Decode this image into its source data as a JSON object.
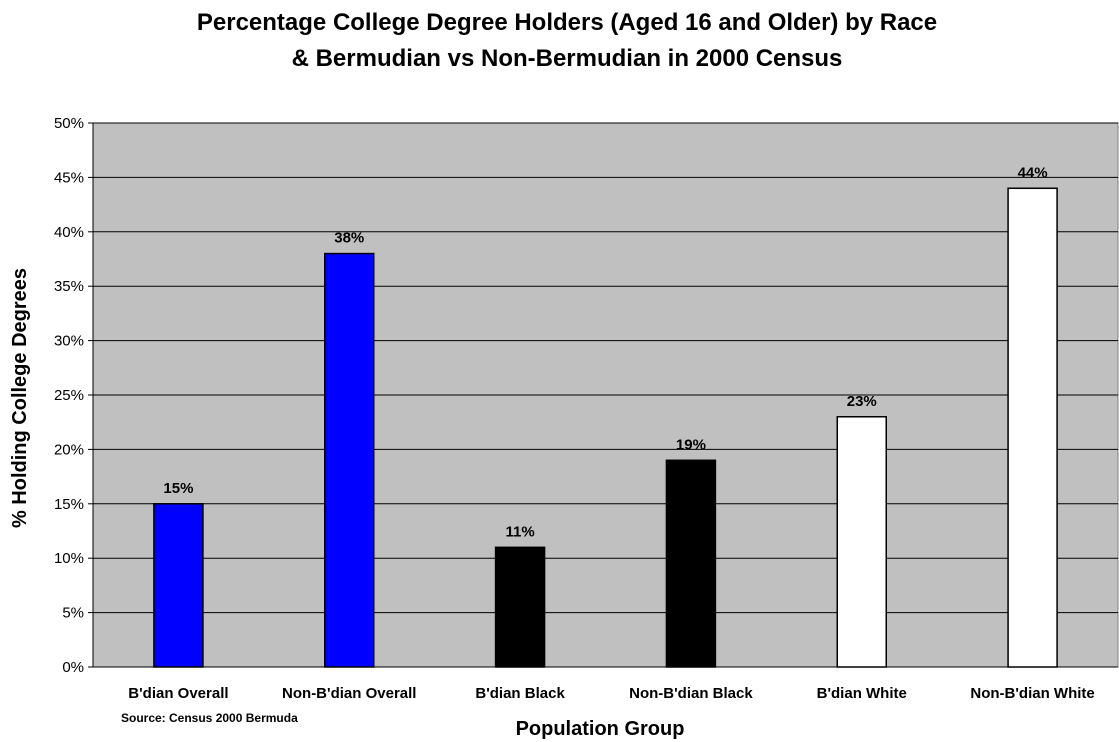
{
  "chart_data": {
    "type": "bar",
    "title_line1": "Percentage College Degree Holders (Aged 16 and Older) by Race",
    "title_line2": "& Bermudian vs Non-Bermudian in 2000 Census",
    "xlabel": "Population Group",
    "ylabel": "% Holding College Degrees",
    "categories": [
      "B'dian Overall",
      "Non-B'dian Overall",
      "B'dian Black",
      "Non-B'dian Black",
      "B'dian White",
      "Non-B'dian White"
    ],
    "values": [
      15,
      38,
      11,
      19,
      23,
      44
    ],
    "data_labels": [
      "15%",
      "38%",
      "11%",
      "19%",
      "23%",
      "44%"
    ],
    "bar_colors": [
      "#0000ff",
      "#0000ff",
      "#000000",
      "#000000",
      "#ffffff",
      "#ffffff"
    ],
    "ylim": [
      0,
      50
    ],
    "yticks": [
      0,
      5,
      10,
      15,
      20,
      25,
      30,
      35,
      40,
      45,
      50
    ],
    "ytick_labels": [
      "0%",
      "5%",
      "10%",
      "15%",
      "20%",
      "25%",
      "30%",
      "35%",
      "40%",
      "45%",
      "50%"
    ],
    "grid": true,
    "plot_background": "#c0c0c0",
    "source_note": "Source: Census 2000 Bermuda"
  }
}
